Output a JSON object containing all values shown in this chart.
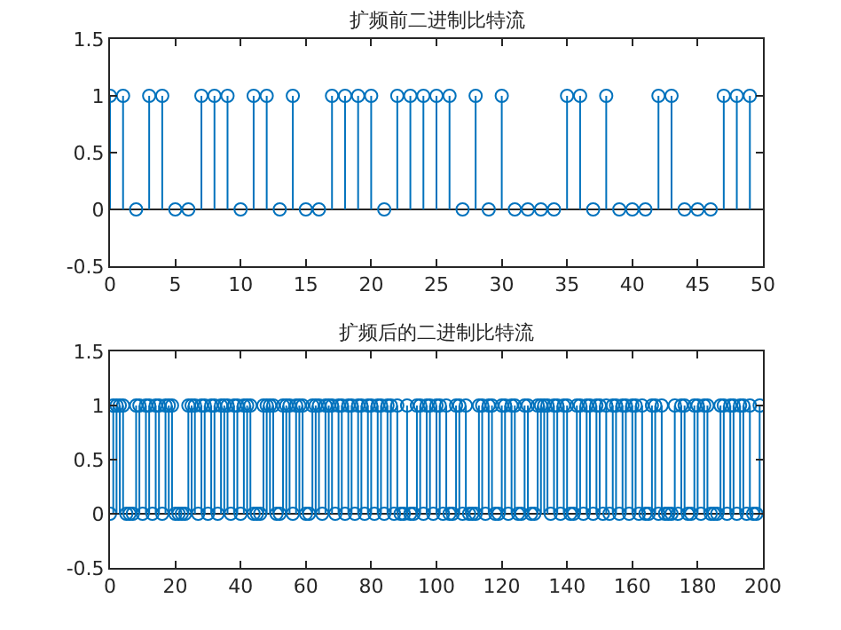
{
  "chart_data": [
    {
      "type": "lollipop",
      "title": "扩频前二进制比特流",
      "xlim": [
        0,
        50
      ],
      "xticks": [
        0,
        5,
        10,
        15,
        20,
        25,
        30,
        35,
        40,
        45,
        50
      ],
      "ylim": [
        -0.5,
        1.5
      ],
      "yticks": [
        -0.5,
        0,
        0.5,
        1,
        1.5
      ],
      "grid": false,
      "marker": "circle",
      "ref_lines": [
        {
          "axis": "y",
          "value": 0,
          "color": "#262626"
        }
      ],
      "series": [
        {
          "color": "#0072bd",
          "x": [
            0,
            1,
            2,
            3,
            4,
            5,
            6,
            7,
            8,
            9,
            10,
            11,
            12,
            13,
            14,
            15,
            16,
            17,
            18,
            19,
            20,
            21,
            22,
            23,
            24,
            25,
            26,
            27,
            28,
            29,
            30,
            31,
            32,
            33,
            34,
            35,
            36,
            37,
            38,
            39,
            40,
            41,
            42,
            43,
            44,
            45,
            46,
            47,
            48,
            49
          ],
          "values": [
            1,
            1,
            0,
            1,
            1,
            0,
            0,
            1,
            1,
            1,
            0,
            1,
            1,
            0,
            1,
            0,
            0,
            1,
            1,
            1,
            1,
            0,
            1,
            1,
            1,
            1,
            1,
            0,
            1,
            0,
            1,
            0,
            0,
            0,
            0,
            1,
            1,
            0,
            1,
            0,
            0,
            0,
            1,
            1,
            0,
            0,
            0,
            1,
            1,
            1
          ]
        }
      ]
    },
    {
      "type": "lollipop",
      "title": "扩频后的二进制比特流",
      "xlim": [
        0,
        200
      ],
      "xticks": [
        0,
        20,
        40,
        60,
        80,
        100,
        120,
        140,
        160,
        180,
        200
      ],
      "ylim": [
        -0.5,
        1.5
      ],
      "yticks": [
        -0.5,
        0,
        0.5,
        1,
        1.5
      ],
      "grid": false,
      "marker": "circle",
      "ref_lines": [
        {
          "axis": "y",
          "value": 0,
          "color": "#262626"
        }
      ],
      "series": [
        {
          "color": "#0072bd",
          "x": [
            0,
            1,
            2,
            3,
            4,
            5,
            6,
            7,
            8,
            9,
            10,
            11,
            12,
            13,
            14,
            15,
            16,
            17,
            18,
            19,
            20,
            21,
            22,
            23,
            24,
            25,
            26,
            27,
            28,
            29,
            30,
            31,
            32,
            33,
            34,
            35,
            36,
            37,
            38,
            39,
            40,
            41,
            42,
            43,
            44,
            45,
            46,
            47,
            48,
            49,
            50,
            51,
            52,
            53,
            54,
            55,
            56,
            57,
            58,
            59,
            60,
            61,
            62,
            63,
            64,
            65,
            66,
            67,
            68,
            69,
            70,
            71,
            72,
            73,
            74,
            75,
            76,
            77,
            78,
            79,
            80,
            81,
            82,
            83,
            84,
            85,
            86,
            87,
            88,
            89,
            90,
            91,
            92,
            93,
            94,
            95,
            96,
            97,
            98,
            99,
            100,
            101,
            102,
            103,
            104,
            105,
            106,
            107,
            108,
            109,
            110,
            111,
            112,
            113,
            114,
            115,
            116,
            117,
            118,
            119,
            120,
            121,
            122,
            123,
            124,
            125,
            126,
            127,
            128,
            129,
            130,
            131,
            132,
            133,
            134,
            135,
            136,
            137,
            138,
            139,
            140,
            141,
            142,
            143,
            144,
            145,
            146,
            147,
            148,
            149,
            150,
            151,
            152,
            153,
            154,
            155,
            156,
            157,
            158,
            159,
            160,
            161,
            162,
            163,
            164,
            165,
            166,
            167,
            168,
            169,
            170,
            171,
            172,
            173,
            174,
            175,
            176,
            177,
            178,
            179,
            180,
            181,
            182,
            183,
            184,
            185,
            186,
            187,
            188,
            189,
            190,
            191,
            192,
            193,
            194,
            195,
            196,
            197,
            198,
            199
          ],
          "values": [
            0,
            1,
            1,
            1,
            1,
            0,
            0,
            0,
            1,
            1,
            0,
            1,
            1,
            0,
            1,
            1,
            0,
            1,
            1,
            1,
            0,
            0,
            0,
            0,
            1,
            1,
            1,
            0,
            1,
            1,
            0,
            1,
            1,
            0,
            1,
            1,
            1,
            0,
            1,
            1,
            0,
            1,
            1,
            1,
            0,
            0,
            0,
            1,
            1,
            1,
            1,
            0,
            0,
            1,
            1,
            1,
            0,
            1,
            1,
            1,
            0,
            0,
            1,
            1,
            1,
            0,
            1,
            1,
            1,
            0,
            1,
            1,
            0,
            1,
            1,
            0,
            1,
            1,
            0,
            1,
            1,
            0,
            1,
            1,
            0,
            1,
            1,
            0,
            1,
            0,
            0,
            1,
            0,
            0,
            1,
            1,
            0,
            1,
            1,
            0,
            1,
            1,
            0,
            1,
            0,
            0,
            1,
            1,
            0,
            1,
            0,
            0,
            0,
            1,
            1,
            0,
            1,
            1,
            0,
            0,
            1,
            1,
            0,
            1,
            1,
            0,
            0,
            1,
            1,
            0,
            0,
            1,
            1,
            1,
            1,
            0,
            1,
            1,
            0,
            1,
            1,
            0,
            0,
            1,
            1,
            0,
            1,
            1,
            0,
            1,
            1,
            0,
            1,
            0,
            1,
            1,
            0,
            1,
            1,
            0,
            1,
            1,
            0,
            1,
            0,
            0,
            1,
            1,
            0,
            1,
            0,
            0,
            0,
            1,
            0,
            1,
            1,
            0,
            0,
            1,
            1,
            0,
            1,
            1,
            0,
            0,
            0,
            1,
            1,
            0,
            1,
            1,
            0,
            1,
            1,
            0,
            1,
            0,
            0,
            1
          ]
        }
      ]
    }
  ]
}
